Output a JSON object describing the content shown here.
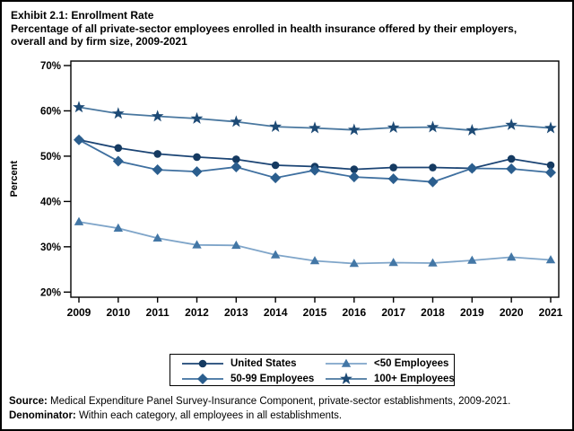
{
  "title": "Exhibit 2.1: Enrollment Rate",
  "subtitle": "Percentage of all private-sector employees enrolled in health insurance offered by their employers, overall and by firm size, 2009-2021",
  "footer": {
    "source_label": "Source:",
    "source_text": " Medical Expenditure Panel Survey-Insurance Component, private-sector establishments, 2009-2021.",
    "denominator_label": "Denominator:",
    "denominator_text": " Within each category, all employees in all establishments."
  },
  "chart_data": {
    "type": "line",
    "title": "Exhibit 2.1: Enrollment Rate",
    "xlabel": "",
    "ylabel": "Percent",
    "x": [
      2009,
      2010,
      2011,
      2012,
      2013,
      2014,
      2015,
      2016,
      2017,
      2018,
      2019,
      2020,
      2021
    ],
    "ylim": [
      20,
      70
    ],
    "ytick_step": 10,
    "ytick_suffix": "%",
    "grid": false,
    "legend_position": "bottom",
    "frame_color": "#000000",
    "series": [
      {
        "name": "United States",
        "marker": "circle",
        "marker_color": "#153a61",
        "line_color": "#1b4474",
        "values": [
          53.6,
          51.8,
          50.5,
          49.8,
          49.3,
          48.0,
          47.7,
          47.1,
          47.5,
          47.5,
          47.3,
          49.4,
          48.0
        ]
      },
      {
        "name": "<50 Employees",
        "marker": "triangle",
        "marker_color": "#4377a6",
        "line_color": "#7fa5c9",
        "values": [
          35.5,
          34.1,
          31.9,
          30.4,
          30.3,
          28.2,
          26.9,
          26.3,
          26.5,
          26.4,
          27.0,
          27.7,
          27.1
        ]
      },
      {
        "name": "50-99 Employees",
        "marker": "diamond",
        "marker_color": "#2b5e8e",
        "line_color": "#3e6f9f",
        "values": [
          53.6,
          48.9,
          47.0,
          46.6,
          47.6,
          45.2,
          46.9,
          45.4,
          45.0,
          44.3,
          47.3,
          47.2,
          46.4
        ]
      },
      {
        "name": "100+ Employees",
        "marker": "star",
        "marker_color": "#1d4a75",
        "line_color": "#49779f",
        "values": [
          60.8,
          59.4,
          58.8,
          58.3,
          57.6,
          56.5,
          56.2,
          55.8,
          56.3,
          56.4,
          55.7,
          56.9,
          56.2
        ]
      }
    ]
  }
}
